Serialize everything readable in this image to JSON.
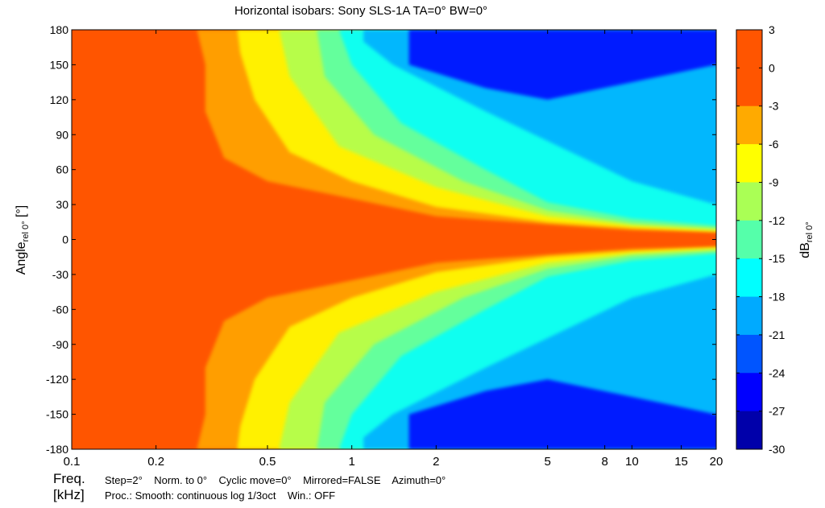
{
  "chart_data": {
    "type": "heatmap",
    "title": "Horizontal isobars: Sony  SLS-1A  TA=0° BW=0°",
    "xlabel": "",
    "ylabel_main": "Angle",
    "ylabel_sub": "rel 0°",
    "ylabel_unit": " [°]",
    "x_scale": "log",
    "xlim": [
      0.1,
      20
    ],
    "ylim": [
      -180,
      180
    ],
    "x_ticks": [
      0.1,
      0.2,
      0.5,
      1,
      2,
      5,
      8,
      10,
      15,
      20
    ],
    "x_tick_labels": [
      "0.1",
      "0.2",
      "0.5",
      "1",
      "2",
      "5",
      "8",
      "10",
      "15",
      "20"
    ],
    "y_ticks": [
      180,
      150,
      120,
      90,
      60,
      30,
      0,
      -30,
      -60,
      -90,
      -120,
      -150,
      -180
    ],
    "y_tick_labels": [
      "180",
      "150",
      "120",
      "90",
      "60",
      "30",
      "0",
      "-30",
      "-60",
      "-90",
      "-120",
      "-150",
      "-180"
    ],
    "grid": false,
    "colorbar": {
      "label_main": "dB",
      "label_sub": "rel 0°",
      "levels": [
        3,
        0,
        -3,
        -6,
        -9,
        -12,
        -15,
        -18,
        -21,
        -24,
        -27,
        -30
      ],
      "level_labels": [
        "3",
        "0",
        "-3",
        "-6",
        "-9",
        "-12",
        "-15",
        "-18",
        "-21",
        "-24",
        "-27",
        "-30"
      ],
      "band_colors": [
        "#ff5500",
        "#ff5500",
        "#ffaa00",
        "#ffff00",
        "#aaff55",
        "#55ffaa",
        "#00ffff",
        "#00aaff",
        "#0055ff",
        "#0000ff",
        "#0000aa"
      ]
    },
    "contours": [
      {
        "db": -3,
        "color": "#ffaa00",
        "freq": [
          0.28,
          0.3,
          0.3,
          0.35,
          0.5,
          1,
          2,
          5,
          10,
          20
        ],
        "angle": [
          180,
          150,
          110,
          70,
          50,
          35,
          20,
          13,
          8,
          6
        ]
      },
      {
        "db": -6,
        "color": "#ffff00",
        "freq": [
          0.39,
          0.4,
          0.45,
          0.6,
          1,
          2,
          5,
          10,
          20
        ],
        "angle": [
          180,
          160,
          120,
          75,
          50,
          28,
          15,
          10,
          7
        ]
      },
      {
        "db": -9,
        "color": "#aaff55",
        "freq": [
          0.55,
          0.6,
          0.9,
          2,
          5,
          10,
          20
        ],
        "angle": [
          180,
          140,
          80,
          45,
          20,
          12,
          8
        ]
      },
      {
        "db": -12,
        "color": "#55ffaa",
        "freq": [
          0.75,
          0.8,
          1.2,
          2.5,
          5,
          10,
          20
        ],
        "angle": [
          180,
          140,
          90,
          50,
          25,
          14,
          10
        ]
      },
      {
        "db": -15,
        "color": "#00ffff",
        "freq": [
          0.9,
          1.0,
          1.5,
          3,
          5,
          10,
          20
        ],
        "angle": [
          180,
          150,
          100,
          60,
          32,
          18,
          12
        ]
      },
      {
        "db": -18,
        "color": "#00aaff",
        "freq": [
          1.1,
          1.4,
          3,
          10,
          20
        ],
        "angle": [
          170,
          150,
          110,
          50,
          30
        ]
      },
      {
        "db": -24,
        "color": "#0000ff",
        "freq": [
          1.6,
          3,
          5,
          20
        ],
        "angle": [
          150,
          130,
          120,
          150
        ]
      }
    ]
  },
  "footer": {
    "freq_label": "Freq.",
    "unit_label": "[kHz]",
    "line1": "Step=2°    Norm. to 0°    Cyclic move=0°    Mirrored=FALSE    Azimuth=0°",
    "line2": "Proc.: Smooth: continuous log 1/3oct    Win.: OFF"
  }
}
